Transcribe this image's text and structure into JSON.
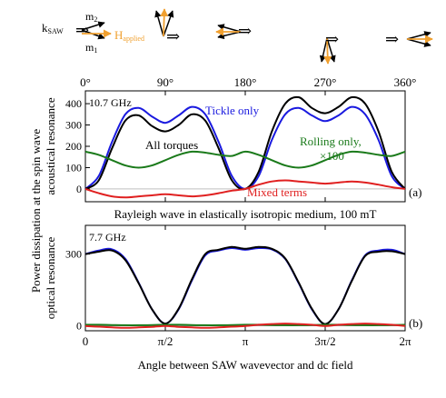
{
  "icons": {
    "k_label": "k",
    "k_sub": "SAW",
    "m2_label": "m",
    "m2_sub": "2",
    "m1_label": "m",
    "m1_sub": "1",
    "h_label": "H",
    "h_sub": "applied",
    "colors": {
      "field": "#f0a030",
      "vector": "#000000"
    }
  },
  "chart_data": [
    {
      "type": "line",
      "panel": "(a)",
      "frequency_label": "10.7 GHz",
      "subtitle": "Rayleigh wave in elastically isotropic medium, 100 mT",
      "ylabel": "acoustical resonance",
      "x_unit": "deg",
      "xlim": [
        0,
        360
      ],
      "ylim": [
        -60,
        460
      ],
      "top_ticks": [
        0,
        90,
        180,
        270,
        360
      ],
      "top_tick_labels": [
        "0°",
        "90°",
        "180°",
        "270°",
        "360°"
      ],
      "y_ticks": [
        0,
        100,
        200,
        300,
        400
      ],
      "y_tick_labels": [
        "0",
        "100",
        "200",
        "300",
        "400"
      ],
      "x": [
        0,
        15,
        30,
        45,
        60,
        75,
        90,
        105,
        120,
        135,
        150,
        165,
        180,
        195,
        210,
        225,
        240,
        255,
        270,
        285,
        300,
        315,
        330,
        345,
        360
      ],
      "series": [
        {
          "name": "Tickle only",
          "color": "#1a1adf",
          "values": [
            0,
            60,
            220,
            350,
            380,
            340,
            310,
            345,
            385,
            350,
            220,
            60,
            0,
            60,
            230,
            350,
            380,
            345,
            318,
            345,
            385,
            350,
            230,
            60,
            0
          ]
        },
        {
          "name": "All torques",
          "color": "#000000",
          "values": [
            0,
            40,
            190,
            320,
            345,
            295,
            270,
            300,
            350,
            320,
            190,
            40,
            0,
            80,
            270,
            400,
            430,
            380,
            355,
            385,
            430,
            400,
            270,
            80,
            0
          ]
        },
        {
          "name": "Rolling only,",
          "color": "#1a7a1a",
          "values": [
            175,
            160,
            135,
            110,
            100,
            110,
            135,
            160,
            175,
            170,
            160,
            155,
            175,
            160,
            135,
            110,
            100,
            110,
            135,
            160,
            175,
            170,
            160,
            155,
            175
          ]
        },
        {
          "name": "Mixed terms",
          "color": "#e02020",
          "values": [
            0,
            -20,
            -35,
            -40,
            -35,
            -30,
            -25,
            -30,
            -35,
            -30,
            -20,
            -8,
            0,
            20,
            35,
            40,
            35,
            30,
            25,
            30,
            35,
            30,
            20,
            8,
            0
          ]
        }
      ],
      "annotations": {
        "tickle": "Tickle only",
        "all": "All torques",
        "rolling_line1": "Rolling only,",
        "rolling_line2": "×100",
        "mixed": "Mixed terms"
      }
    },
    {
      "type": "line",
      "panel": "(b)",
      "frequency_label": "7.7 GHz",
      "ylabel": "optical resonance",
      "x_unit": "rad",
      "xlim": [
        0,
        6.2832
      ],
      "ylim": [
        -20,
        420
      ],
      "x_ticks": [
        0,
        1.5708,
        3.1416,
        4.7124,
        6.2832
      ],
      "x_tick_labels": [
        "0",
        "π/2",
        "π",
        "3π/2",
        "2π"
      ],
      "y_ticks": [
        0,
        300
      ],
      "y_tick_labels": [
        "0",
        "300"
      ],
      "xlabel": "Angle between SAW wavevector and dc field",
      "x": [
        0,
        0.2618,
        0.5236,
        0.7854,
        1.0472,
        1.309,
        1.5708,
        1.8326,
        2.0944,
        2.3562,
        2.618,
        2.8798,
        3.1416,
        3.4034,
        3.6652,
        3.927,
        4.1888,
        4.4506,
        4.7124,
        4.9742,
        5.236,
        5.4978,
        5.7596,
        6.0214,
        6.2832
      ],
      "series": [
        {
          "name": "Tickle only",
          "color": "#1a1adf",
          "values": [
            300,
            315,
            320,
            280,
            180,
            70,
            10,
            70,
            190,
            295,
            315,
            325,
            318,
            325,
            320,
            280,
            180,
            70,
            8,
            70,
            190,
            295,
            315,
            318,
            300
          ]
        },
        {
          "name": "All torques",
          "color": "#000000",
          "values": [
            300,
            310,
            315,
            275,
            178,
            70,
            10,
            72,
            195,
            300,
            318,
            330,
            322,
            330,
            322,
            282,
            182,
            72,
            8,
            70,
            188,
            292,
            310,
            312,
            300
          ]
        },
        {
          "name": "Rolling only,",
          "color": "#1a7a1a",
          "values": [
            5,
            5,
            4,
            3,
            3,
            4,
            5,
            5,
            4,
            3,
            3,
            4,
            5,
            5,
            4,
            3,
            3,
            4,
            5,
            5,
            4,
            3,
            3,
            4,
            5
          ]
        },
        {
          "name": "Mixed terms",
          "color": "#e02020",
          "values": [
            0,
            -3,
            -6,
            -8,
            -6,
            -4,
            0,
            -4,
            -6,
            -8,
            -6,
            -3,
            0,
            5,
            8,
            10,
            8,
            5,
            0,
            5,
            8,
            10,
            8,
            5,
            0
          ]
        }
      ]
    }
  ],
  "shared_ylabel_line1": "Power dissipation at the spin wave"
}
